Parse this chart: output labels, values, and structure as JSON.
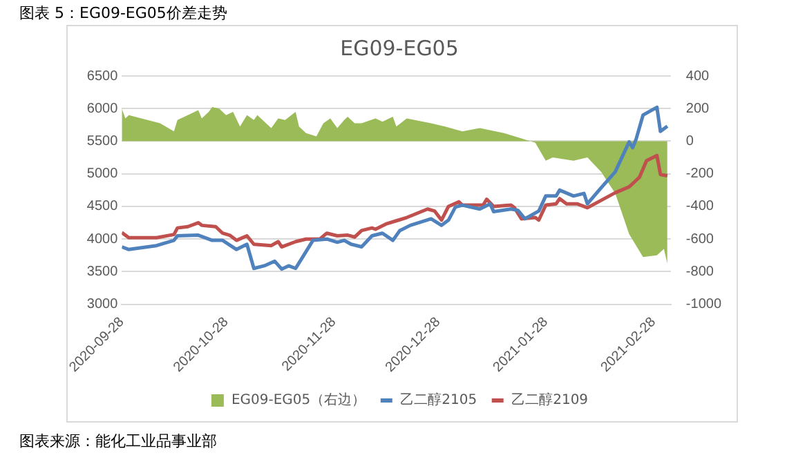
{
  "chart_data": {
    "type": "line",
    "title": "图表 5：EG09-EG05价差走势",
    "subtitle": "EG09-EG05",
    "annotations": [
      "图表来源：能化工业品事业部"
    ],
    "xlim": [
      "2020-09-28",
      "2021-03-05"
    ],
    "xticks": [
      "2020-09-28",
      "2020-10-28",
      "2020-11-28",
      "2020-12-28",
      "2021-01-28",
      "2021-02-28"
    ],
    "ylim": [
      3000,
      6500
    ],
    "yticks": [
      3000,
      3500,
      4000,
      4500,
      5000,
      5500,
      6000,
      6500
    ],
    "y2lim": [
      -1000,
      400
    ],
    "y2ticks": [
      -1000,
      -800,
      -600,
      -400,
      -200,
      0,
      200,
      400
    ],
    "grid": "y",
    "legend": "bottom",
    "marker": "none",
    "line_style": "solid",
    "series": [
      {
        "name": "EG09-EG05（右边）",
        "type": "area",
        "axis": "y2",
        "color": "#9bbb59",
        "x": [
          "2020-09-28",
          "2020-09-29",
          "2020-09-30",
          "2020-10-09",
          "2020-10-13",
          "2020-10-14",
          "2020-10-17",
          "2020-10-20",
          "2020-10-21",
          "2020-10-23",
          "2020-10-24",
          "2020-10-26",
          "2020-10-28",
          "2020-10-30",
          "2020-11-01",
          "2020-11-03",
          "2020-11-05",
          "2020-11-06",
          "2020-11-10",
          "2020-11-12",
          "2020-11-14",
          "2020-11-17",
          "2020-11-18",
          "2020-11-20",
          "2020-11-23",
          "2020-11-25",
          "2020-11-27",
          "2020-11-29",
          "2020-12-01",
          "2020-12-02",
          "2020-12-04",
          "2020-12-06",
          "2020-12-10",
          "2020-12-12",
          "2020-12-15",
          "2020-12-16",
          "2020-12-19",
          "2020-12-26",
          "2020-12-30",
          "2021-01-04",
          "2021-01-09",
          "2021-01-16",
          "2021-01-22",
          "2021-01-25",
          "2021-01-28",
          "2021-01-30",
          "2021-02-05",
          "2021-02-09",
          "2021-02-13",
          "2021-02-17",
          "2021-02-21",
          "2021-02-25",
          "2021-03-01",
          "2021-03-03",
          "2021-03-04"
        ],
        "values": [
          200,
          140,
          160,
          110,
          60,
          130,
          160,
          190,
          140,
          180,
          210,
          200,
          160,
          180,
          90,
          160,
          130,
          160,
          80,
          140,
          130,
          180,
          90,
          50,
          30,
          110,
          140,
          80,
          130,
          150,
          110,
          110,
          140,
          120,
          150,
          90,
          140,
          110,
          90,
          60,
          80,
          50,
          10,
          -10,
          -120,
          -100,
          -120,
          -100,
          -190,
          -320,
          -570,
          -710,
          -700,
          -660,
          -750
        ]
      },
      {
        "name": "乙二醇2105",
        "type": "line",
        "color": "#4f81bd",
        "x": [
          "2020-09-28",
          "2020-09-30",
          "2020-10-08",
          "2020-10-13",
          "2020-10-14",
          "2020-10-20",
          "2020-10-24",
          "2020-10-27",
          "2020-10-31",
          "2020-11-03",
          "2020-11-05",
          "2020-11-08",
          "2020-11-11",
          "2020-11-13",
          "2020-11-15",
          "2020-11-17",
          "2020-11-19",
          "2020-11-22",
          "2020-11-26",
          "2020-11-29",
          "2020-12-01",
          "2020-12-03",
          "2020-12-06",
          "2020-12-09",
          "2020-12-12",
          "2020-12-15",
          "2020-12-17",
          "2020-12-20",
          "2020-12-26",
          "2020-12-29",
          "2020-12-31",
          "2021-01-02",
          "2021-01-04",
          "2021-01-09",
          "2021-01-12",
          "2021-01-13",
          "2021-01-18",
          "2021-01-20",
          "2021-01-22",
          "2021-01-26",
          "2021-01-28",
          "2021-01-31",
          "2021-02-01",
          "2021-02-05",
          "2021-02-08",
          "2021-02-09",
          "2021-02-13",
          "2021-02-17",
          "2021-02-21",
          "2021-02-22",
          "2021-02-23",
          "2021-02-25",
          "2021-03-01",
          "2021-03-02",
          "2021-03-04"
        ],
        "values": [
          3880,
          3840,
          3900,
          3980,
          4050,
          4060,
          3980,
          3980,
          3840,
          3920,
          3550,
          3590,
          3660,
          3540,
          3590,
          3550,
          3720,
          3980,
          4000,
          3950,
          3980,
          3920,
          3880,
          4050,
          4090,
          3980,
          4130,
          4210,
          4310,
          4210,
          4290,
          4490,
          4520,
          4460,
          4540,
          4420,
          4460,
          4440,
          4310,
          4430,
          4660,
          4660,
          4750,
          4660,
          4700,
          4540,
          4790,
          5030,
          5490,
          5400,
          5530,
          5900,
          6020,
          5650,
          5730
        ]
      },
      {
        "name": "乙二醇2109",
        "type": "line",
        "color": "#c0504d",
        "x": [
          "2020-09-28",
          "2020-09-30",
          "2020-10-08",
          "2020-10-13",
          "2020-10-14",
          "2020-10-17",
          "2020-10-20",
          "2020-10-21",
          "2020-10-25",
          "2020-10-27",
          "2020-10-29",
          "2020-10-31",
          "2020-11-03",
          "2020-11-05",
          "2020-11-10",
          "2020-11-12",
          "2020-11-13",
          "2020-11-17",
          "2020-11-20",
          "2020-11-24",
          "2020-11-26",
          "2020-11-29",
          "2020-12-02",
          "2020-12-04",
          "2020-12-06",
          "2020-12-09",
          "2020-12-10",
          "2020-12-13",
          "2020-12-16",
          "2020-12-19",
          "2020-12-25",
          "2020-12-27",
          "2020-12-29",
          "2020-12-31",
          "2021-01-03",
          "2021-01-04",
          "2021-01-10",
          "2021-01-11",
          "2021-01-13",
          "2021-01-18",
          "2021-01-19",
          "2021-01-21",
          "2021-01-25",
          "2021-01-26",
          "2021-01-28",
          "2021-01-31",
          "2021-02-01",
          "2021-02-03",
          "2021-02-06",
          "2021-02-09",
          "2021-02-17",
          "2021-02-21",
          "2021-02-24",
          "2021-02-26",
          "2021-03-01",
          "2021-03-02",
          "2021-03-04"
        ],
        "values": [
          4100,
          4020,
          4020,
          4070,
          4170,
          4190,
          4250,
          4210,
          4190,
          4090,
          4060,
          3980,
          4050,
          3920,
          3900,
          3960,
          3880,
          3960,
          4000,
          4000,
          4090,
          4050,
          4060,
          4030,
          4130,
          4170,
          4150,
          4230,
          4280,
          4330,
          4460,
          4430,
          4290,
          4500,
          4570,
          4520,
          4520,
          4610,
          4500,
          4520,
          4480,
          4310,
          4330,
          4290,
          4520,
          4540,
          4620,
          4540,
          4540,
          4480,
          4710,
          4800,
          4950,
          5200,
          5280,
          4990,
          4970
        ]
      }
    ]
  }
}
